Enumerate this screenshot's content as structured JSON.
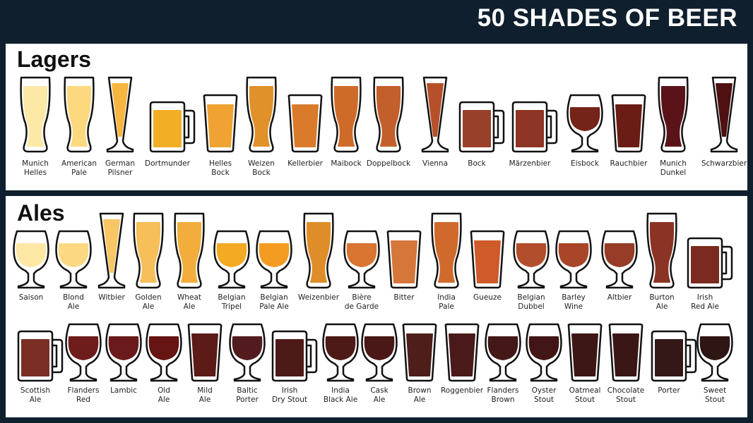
{
  "title": "50 SHADES OF BEER",
  "sections": [
    {
      "heading": "Lagers",
      "rows": [
        [
          {
            "name": "Munich\nHelles",
            "glass": "weizen",
            "color": "#fde9a6"
          },
          {
            "name": "American\nPale",
            "glass": "weizen",
            "color": "#fcd97f"
          },
          {
            "name": "German\nPilsner",
            "glass": "pilsner",
            "color": "#f7b541"
          },
          {
            "name": "Dortmunder",
            "glass": "mug",
            "color": "#f2ae25"
          },
          {
            "name": "Helles\nBock",
            "glass": "shaker",
            "color": "#f0a232"
          },
          {
            "name": "Weizen\nBock",
            "glass": "weizen",
            "color": "#e0912a"
          },
          {
            "name": "Kellerbier",
            "glass": "shaker",
            "color": "#d97b2b"
          },
          {
            "name": "Maibock",
            "glass": "weizen",
            "color": "#cf6b29"
          },
          {
            "name": "Doppelbock",
            "glass": "weizen",
            "color": "#c35f2a"
          },
          {
            "name": "Vienna",
            "glass": "pilsner",
            "color": "#b5502a"
          },
          {
            "name": "Bock",
            "glass": "mug",
            "color": "#98402a"
          },
          {
            "name": "Märzenbier",
            "glass": "mug",
            "color": "#8e3525"
          },
          {
            "name": "Eisbock",
            "glass": "tulip",
            "color": "#742419"
          },
          {
            "name": "Rauchbier",
            "glass": "shaker",
            "color": "#6a1d15"
          },
          {
            "name": "Munich\nDunkel",
            "glass": "weizen",
            "color": "#5a1419"
          },
          {
            "name": "Schwarzbier",
            "glass": "pilsner",
            "color": "#4f1012"
          }
        ]
      ]
    },
    {
      "heading": "Ales",
      "rows": [
        [
          {
            "name": "Saison",
            "glass": "tulip",
            "color": "#fde7a5"
          },
          {
            "name": "Blond\nAle",
            "glass": "tulip",
            "color": "#fcd883"
          },
          {
            "name": "Witbier",
            "glass": "pilsner",
            "color": "#f9c665"
          },
          {
            "name": "Golden\nAle",
            "glass": "weizen",
            "color": "#f6bf5a"
          },
          {
            "name": "Wheat\nAle",
            "glass": "weizen",
            "color": "#f2ad3c"
          },
          {
            "name": "Belgian\nTripel",
            "glass": "tulip",
            "color": "#f4aa23"
          },
          {
            "name": "Belgian\nPale Ale",
            "glass": "tulip",
            "color": "#f49b22"
          },
          {
            "name": "Weizenbier",
            "glass": "weizen",
            "color": "#df8d28"
          },
          {
            "name": "Bière\nde Garde",
            "glass": "tulip",
            "color": "#d97431"
          },
          {
            "name": "Bitter",
            "glass": "shaker",
            "color": "#d5773a"
          },
          {
            "name": "India\nPale",
            "glass": "weizen",
            "color": "#d06a2c"
          },
          {
            "name": "Gueuze",
            "glass": "shaker",
            "color": "#cf5a2a"
          },
          {
            "name": "Belgian\nDubbel",
            "glass": "tulip",
            "color": "#b34e2d"
          },
          {
            "name": "Barley\nWine",
            "glass": "tulip",
            "color": "#a94528"
          },
          {
            "name": "Altbier",
            "glass": "tulip",
            "color": "#963c27"
          },
          {
            "name": "Burton\nAle",
            "glass": "weizen",
            "color": "#8b3325"
          },
          {
            "name": "Irish\nRed Ale",
            "glass": "mug",
            "color": "#7a2a1e"
          }
        ],
        [
          {
            "name": "Scottish\nAle",
            "glass": "mug",
            "color": "#7a2e24"
          },
          {
            "name": "Flanders\nRed",
            "glass": "tulip",
            "color": "#6e1c1c"
          },
          {
            "name": "Lambic",
            "glass": "tulip",
            "color": "#6a1a1a"
          },
          {
            "name": "Old\nAle",
            "glass": "tulip",
            "color": "#661414"
          },
          {
            "name": "Mild\nAle",
            "glass": "shaker",
            "color": "#5c1b17"
          },
          {
            "name": "Baltic\nPorter",
            "glass": "tulip",
            "color": "#521c1e"
          },
          {
            "name": "Irish\nDry Stout",
            "glass": "mug",
            "color": "#4e1a18"
          },
          {
            "name": "India\nBlack Ale",
            "glass": "tulip",
            "color": "#4d1a18"
          },
          {
            "name": "Cask\nAle",
            "glass": "tulip",
            "color": "#4a1817"
          },
          {
            "name": "Brown\nAle",
            "glass": "shaker",
            "color": "#4d1e1a"
          },
          {
            "name": "Roggenbier",
            "glass": "shaker",
            "color": "#4a1a1a"
          },
          {
            "name": "Flanders\nBrown",
            "glass": "tulip",
            "color": "#451818"
          },
          {
            "name": "Oyster\nStout",
            "glass": "tulip",
            "color": "#421616"
          },
          {
            "name": "Oatmeal\nStout",
            "glass": "shaker",
            "color": "#3d1616"
          },
          {
            "name": "Chocolate\nStout",
            "glass": "shaker",
            "color": "#3a1716"
          },
          {
            "name": "Porter",
            "glass": "mug",
            "color": "#341818"
          },
          {
            "name": "Sweet\nStout",
            "glass": "tulip",
            "color": "#2e1614"
          }
        ]
      ]
    }
  ]
}
